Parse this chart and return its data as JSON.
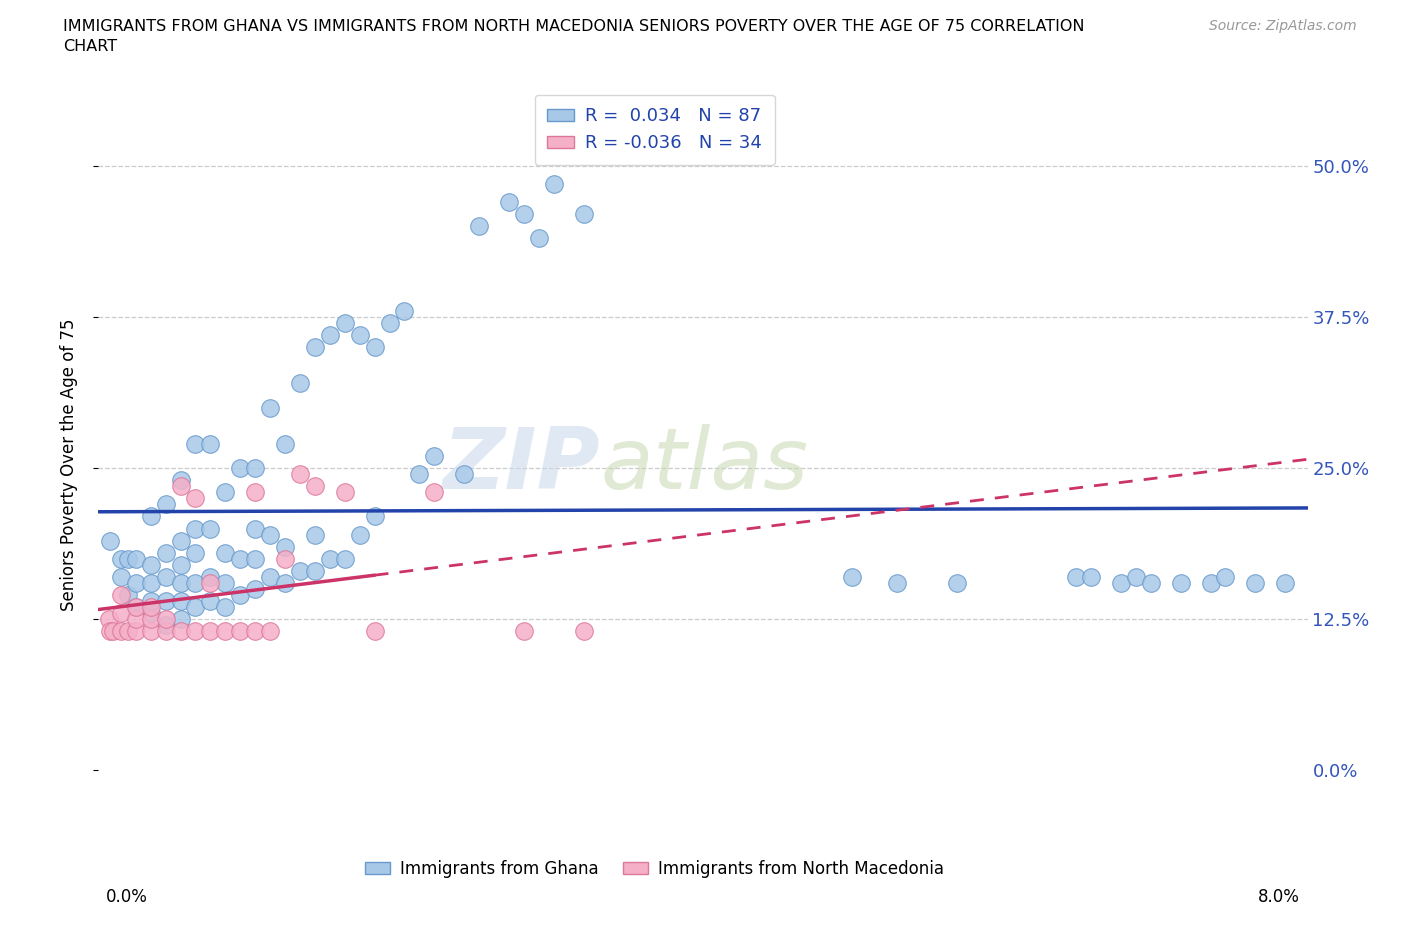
{
  "title_line1": "IMMIGRANTS FROM GHANA VS IMMIGRANTS FROM NORTH MACEDONIA SENIORS POVERTY OVER THE AGE OF 75 CORRELATION",
  "title_line2": "CHART",
  "source": "Source: ZipAtlas.com",
  "ylabel": "Seniors Poverty Over the Age of 75",
  "watermark_zip": "ZIP",
  "watermark_atlas": "atlas",
  "ghana_R": 0.034,
  "ghana_N": 87,
  "macedonia_R": -0.036,
  "macedonia_N": 34,
  "xlim_min": -0.0005,
  "xlim_max": 0.0805,
  "ylim_min": -0.055,
  "ylim_max": 0.56,
  "yticks": [
    0.0,
    0.125,
    0.25,
    0.375,
    0.5
  ],
  "ytick_labels_right": [
    "0.0%",
    "12.5%",
    "25.0%",
    "37.5%",
    "50.0%"
  ],
  "hlines_y": [
    0.125,
    0.25,
    0.375,
    0.5
  ],
  "ghana_face": "#a8c8e8",
  "ghana_edge": "#6699cc",
  "mac_face": "#f5b0c8",
  "mac_edge": "#dd7799",
  "trend_ghana_color": "#2244aa",
  "trend_mac_color": "#cc3366",
  "label_ghana": "Immigrants from Ghana",
  "label_mac": "Immigrants from North Macedonia",
  "ghana_x": [
    0.0003,
    0.001,
    0.001,
    0.0015,
    0.0015,
    0.002,
    0.002,
    0.002,
    0.003,
    0.003,
    0.003,
    0.003,
    0.003,
    0.004,
    0.004,
    0.004,
    0.004,
    0.004,
    0.005,
    0.005,
    0.005,
    0.005,
    0.005,
    0.005,
    0.006,
    0.006,
    0.006,
    0.006,
    0.006,
    0.007,
    0.007,
    0.007,
    0.007,
    0.008,
    0.008,
    0.008,
    0.008,
    0.009,
    0.009,
    0.009,
    0.01,
    0.01,
    0.01,
    0.01,
    0.011,
    0.011,
    0.011,
    0.012,
    0.012,
    0.012,
    0.013,
    0.013,
    0.014,
    0.014,
    0.014,
    0.015,
    0.015,
    0.016,
    0.016,
    0.017,
    0.017,
    0.018,
    0.018,
    0.019,
    0.02,
    0.021,
    0.022,
    0.024,
    0.025,
    0.027,
    0.028,
    0.029,
    0.03,
    0.032,
    0.05,
    0.053,
    0.057,
    0.065,
    0.066,
    0.068,
    0.069,
    0.07,
    0.072,
    0.074,
    0.075,
    0.077,
    0.079
  ],
  "ghana_y": [
    0.19,
    0.16,
    0.175,
    0.145,
    0.175,
    0.135,
    0.155,
    0.175,
    0.13,
    0.14,
    0.155,
    0.17,
    0.21,
    0.12,
    0.14,
    0.16,
    0.18,
    0.22,
    0.125,
    0.14,
    0.155,
    0.17,
    0.19,
    0.24,
    0.135,
    0.155,
    0.18,
    0.2,
    0.27,
    0.14,
    0.16,
    0.2,
    0.27,
    0.135,
    0.155,
    0.18,
    0.23,
    0.145,
    0.175,
    0.25,
    0.15,
    0.175,
    0.2,
    0.25,
    0.16,
    0.195,
    0.3,
    0.155,
    0.185,
    0.27,
    0.165,
    0.32,
    0.165,
    0.195,
    0.35,
    0.175,
    0.36,
    0.175,
    0.37,
    0.195,
    0.36,
    0.21,
    0.35,
    0.37,
    0.38,
    0.245,
    0.26,
    0.245,
    0.45,
    0.47,
    0.46,
    0.44,
    0.485,
    0.46,
    0.16,
    0.155,
    0.155,
    0.16,
    0.16,
    0.155,
    0.16,
    0.155,
    0.155,
    0.155,
    0.16,
    0.155,
    0.155
  ],
  "mac_x": [
    0.0002,
    0.0003,
    0.0005,
    0.001,
    0.001,
    0.001,
    0.0015,
    0.002,
    0.002,
    0.002,
    0.003,
    0.003,
    0.003,
    0.004,
    0.004,
    0.005,
    0.005,
    0.006,
    0.006,
    0.007,
    0.007,
    0.008,
    0.009,
    0.01,
    0.01,
    0.011,
    0.012,
    0.013,
    0.014,
    0.016,
    0.018,
    0.022,
    0.028,
    0.032
  ],
  "mac_y": [
    0.125,
    0.115,
    0.115,
    0.115,
    0.13,
    0.145,
    0.115,
    0.115,
    0.125,
    0.135,
    0.115,
    0.125,
    0.135,
    0.115,
    0.125,
    0.115,
    0.235,
    0.115,
    0.225,
    0.115,
    0.155,
    0.115,
    0.115,
    0.115,
    0.23,
    0.115,
    0.175,
    0.245,
    0.235,
    0.23,
    0.115,
    0.23,
    0.115,
    0.115
  ]
}
